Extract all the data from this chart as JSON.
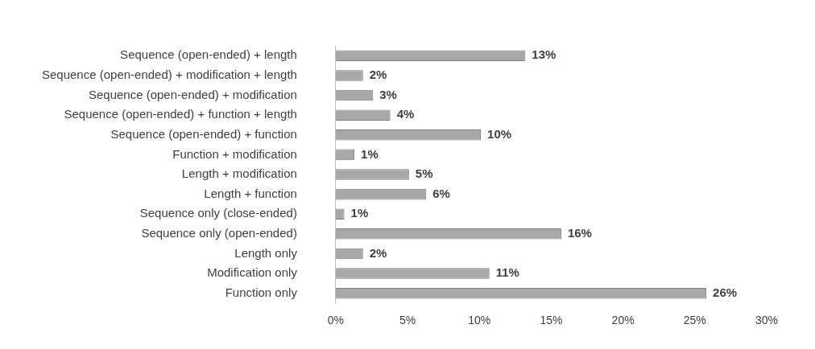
{
  "chart_data": {
    "type": "bar",
    "orientation": "horizontal",
    "categories": [
      "Sequence (open-ended) + length",
      "Sequence (open-ended) + modification + length",
      "Sequence (open-ended) + modification",
      "Sequence (open-ended) + function + length",
      "Sequence (open-ended) + function",
      "Function + modification",
      "Length + modification",
      "Length + function",
      "Sequence only (close-ended)",
      "Sequence only (open-ended)",
      "Length only",
      "Modification only",
      "Function only"
    ],
    "values": [
      13.2,
      1.9,
      2.6,
      3.8,
      10.1,
      1.3,
      5.1,
      6.3,
      0.6,
      15.7,
      1.9,
      10.7,
      25.8
    ],
    "value_labels": [
      "13%",
      "2%",
      "3%",
      "4%",
      "10%",
      "1%",
      "5%",
      "6%",
      "1%",
      "16%",
      "2%",
      "11%",
      "26%"
    ],
    "color": "#a8a8a8",
    "xlim": [
      0,
      30
    ],
    "xticks": [
      {
        "value": 0,
        "label": "0%"
      },
      {
        "value": 5,
        "label": "5%"
      },
      {
        "value": 10,
        "label": "10%"
      },
      {
        "value": 15,
        "label": "15%"
      },
      {
        "value": 20,
        "label": "20%"
      },
      {
        "value": 25,
        "label": "25%"
      },
      {
        "value": 30,
        "label": "30%"
      }
    ],
    "grid": false,
    "legend": false
  }
}
